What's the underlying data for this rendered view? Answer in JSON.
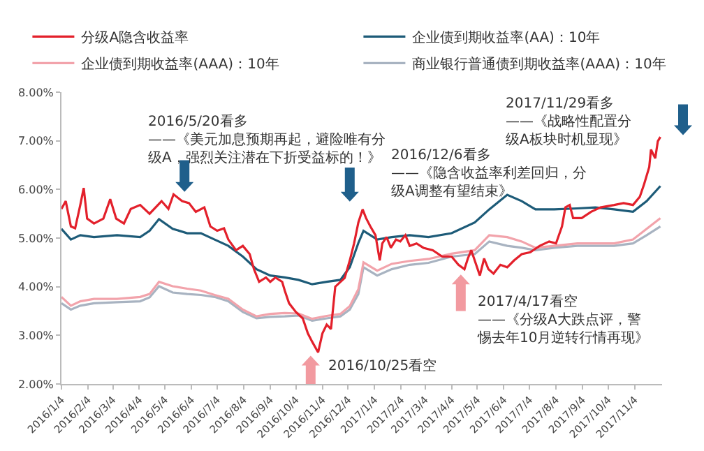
{
  "chart_data": {
    "type": "line",
    "legend": "top",
    "grid": false,
    "marker": "none",
    "line_style": "solid",
    "xlim": [
      "2016-01-04",
      "2017-12-06"
    ],
    "xticks": [
      {
        "value": "2016-01-04",
        "label": "2016/1/4"
      },
      {
        "value": "2016-02-04",
        "label": "2016/2/4"
      },
      {
        "value": "2016-03-04",
        "label": "2016/3/4"
      },
      {
        "value": "2016-04-04",
        "label": "2016/4/4"
      },
      {
        "value": "2016-05-04",
        "label": "2016/5/4"
      },
      {
        "value": "2016-06-04",
        "label": "2016/6/4"
      },
      {
        "value": "2016-07-04",
        "label": "2016/7/4"
      },
      {
        "value": "2016-08-04",
        "label": "2016/8/4"
      },
      {
        "value": "2016-09-04",
        "label": "2016/9/4"
      },
      {
        "value": "2016-10-04",
        "label": "2016/10/4"
      },
      {
        "value": "2016-11-04",
        "label": "2016/11/4"
      },
      {
        "value": "2016-12-04",
        "label": "2016/12/4"
      },
      {
        "value": "2017-01-04",
        "label": "2017/1/4"
      },
      {
        "value": "2017-02-04",
        "label": "2017/2/4"
      },
      {
        "value": "2017-03-04",
        "label": "2017/3/4"
      },
      {
        "value": "2017-04-04",
        "label": "2017/4/4"
      },
      {
        "value": "2017-05-04",
        "label": "2017/5/4"
      },
      {
        "value": "2017-06-04",
        "label": "2017/6/4"
      },
      {
        "value": "2017-07-04",
        "label": "2017/7/4"
      },
      {
        "value": "2017-08-04",
        "label": "2017/8/4"
      },
      {
        "value": "2017-09-04",
        "label": "2017/9/4"
      },
      {
        "value": "2017-10-04",
        "label": "2017/10/4"
      },
      {
        "value": "2017-11-04",
        "label": "2017/11/4"
      }
    ],
    "ylim": [
      2,
      8
    ],
    "yticks": [
      {
        "value": 2,
        "label": "2.00%"
      },
      {
        "value": 3,
        "label": "3.00%"
      },
      {
        "value": 4,
        "label": "4.00%"
      },
      {
        "value": 5,
        "label": "5.00%"
      },
      {
        "value": 6,
        "label": "6.00%"
      },
      {
        "value": 7,
        "label": "7.00%"
      },
      {
        "value": 8,
        "label": "8.00%"
      }
    ],
    "x": [
      "2016-01-04",
      "2016-01-15",
      "2016-01-26",
      "2016-02-11",
      "2016-03-09",
      "2016-04-05",
      "2016-04-16",
      "2016-04-27",
      "2016-05-13",
      "2016-05-30",
      "2016-06-15",
      "2016-07-01",
      "2016-07-17",
      "2016-08-03",
      "2016-08-19",
      "2016-09-04",
      "2016-09-21",
      "2016-10-07",
      "2016-10-23",
      "2016-11-09",
      "2016-11-25",
      "2016-12-06",
      "2016-12-16",
      "2016-12-22",
      "2017-01-07",
      "2017-01-24",
      "2017-02-14",
      "2017-03-08",
      "2017-04-04",
      "2017-05-01",
      "2017-05-18",
      "2017-06-08",
      "2017-06-25",
      "2017-07-11",
      "2017-08-02",
      "2017-08-29",
      "2017-09-19",
      "2017-10-11",
      "2017-11-02",
      "2017-11-18",
      "2017-12-04"
    ],
    "series": [
      {
        "name": "分级A隐含收益率",
        "color": "#e3202b",
        "x": [
          "2016-01-04",
          "2016-01-09",
          "2016-01-15",
          "2016-01-20",
          "2016-01-26",
          "2016-01-30",
          "2016-02-03",
          "2016-02-11",
          "2016-02-22",
          "2016-03-01",
          "2016-03-08",
          "2016-03-17",
          "2016-03-25",
          "2016-04-05",
          "2016-04-16",
          "2016-04-30",
          "2016-05-08",
          "2016-05-14",
          "2016-05-24",
          "2016-06-01",
          "2016-06-09",
          "2016-06-19",
          "2016-06-26",
          "2016-07-04",
          "2016-07-12",
          "2016-07-17",
          "2016-07-26",
          "2016-08-03",
          "2016-08-11",
          "2016-08-16",
          "2016-08-22",
          "2016-08-30",
          "2016-09-04",
          "2016-09-10",
          "2016-09-18",
          "2016-09-21",
          "2016-09-26",
          "2016-10-04",
          "2016-10-12",
          "2016-10-18",
          "2016-10-23",
          "2016-10-30",
          "2016-11-04",
          "2016-11-09",
          "2016-11-14",
          "2016-11-19",
          "2016-11-30",
          "2016-12-06",
          "2016-12-11",
          "2016-12-16",
          "2016-12-21",
          "2016-12-25",
          "2016-12-30",
          "2017-01-05",
          "2017-01-10",
          "2017-01-13",
          "2017-01-18",
          "2017-01-23",
          "2017-01-29",
          "2017-02-03",
          "2017-02-09",
          "2017-02-14",
          "2017-02-22",
          "2017-03-02",
          "2017-03-13",
          "2017-03-24",
          "2017-04-04",
          "2017-04-12",
          "2017-04-19",
          "2017-04-23",
          "2017-04-27",
          "2017-05-01",
          "2017-05-07",
          "2017-05-12",
          "2017-05-17",
          "2017-05-23",
          "2017-05-31",
          "2017-06-08",
          "2017-06-16",
          "2017-06-25",
          "2017-07-05",
          "2017-07-16",
          "2017-07-27",
          "2017-08-04",
          "2017-08-11",
          "2017-08-15",
          "2017-08-20",
          "2017-08-24",
          "2017-09-03",
          "2017-09-14",
          "2017-09-25",
          "2017-10-11",
          "2017-10-22",
          "2017-11-02",
          "2017-11-10",
          "2017-11-15",
          "2017-11-21",
          "2017-11-23",
          "2017-11-28",
          "2017-12-01",
          "2017-12-04"
        ],
        "values": [
          5.6,
          5.76,
          5.24,
          5.2,
          5.68,
          6.03,
          5.4,
          5.3,
          5.4,
          5.8,
          5.4,
          5.3,
          5.6,
          5.68,
          5.5,
          5.76,
          5.6,
          5.9,
          5.76,
          5.72,
          5.54,
          5.63,
          5.24,
          5.15,
          5.2,
          4.97,
          4.75,
          4.84,
          4.67,
          4.36,
          4.1,
          4.19,
          4.1,
          4.19,
          4.1,
          3.92,
          3.66,
          3.48,
          3.35,
          3.04,
          2.87,
          2.65,
          3.04,
          3.22,
          3.13,
          4.0,
          4.18,
          4.54,
          4.89,
          5.32,
          5.59,
          5.41,
          5.24,
          5.06,
          4.54,
          4.89,
          5.02,
          4.8,
          4.97,
          4.93,
          5.06,
          4.84,
          4.89,
          4.8,
          4.75,
          4.62,
          4.62,
          4.45,
          4.36,
          4.58,
          4.75,
          4.54,
          4.23,
          4.58,
          4.36,
          4.27,
          4.45,
          4.4,
          4.54,
          4.67,
          4.71,
          4.84,
          4.93,
          4.89,
          5.24,
          5.63,
          5.68,
          5.41,
          5.41,
          5.54,
          5.63,
          5.68,
          5.72,
          5.68,
          5.85,
          6.11,
          6.46,
          6.82,
          6.64,
          6.99,
          7.08
        ]
      },
      {
        "name": "企业债到期收益率(AA)：10年",
        "color": "#1d5b78",
        "values": [
          5.19,
          4.97,
          5.06,
          5.02,
          5.06,
          5.02,
          5.15,
          5.39,
          5.19,
          5.1,
          5.1,
          4.97,
          4.84,
          4.62,
          4.36,
          4.23,
          4.19,
          4.14,
          4.05,
          4.1,
          4.14,
          4.4,
          4.9,
          5.15,
          4.97,
          5.02,
          5.06,
          5.02,
          5.1,
          5.32,
          5.59,
          5.89,
          5.76,
          5.59,
          5.59,
          5.61,
          5.63,
          5.59,
          5.54,
          5.76,
          6.07
        ]
      },
      {
        "name": "企业债到期收益率(AAA)：10年",
        "color": "#f2a3ab",
        "values": [
          3.79,
          3.61,
          3.7,
          3.75,
          3.75,
          3.79,
          3.85,
          4.1,
          4.01,
          3.96,
          3.92,
          3.83,
          3.75,
          3.53,
          3.39,
          3.44,
          3.46,
          3.45,
          3.34,
          3.4,
          3.44,
          3.6,
          3.95,
          4.5,
          4.33,
          4.47,
          4.53,
          4.57,
          4.68,
          4.75,
          5.06,
          5.02,
          4.93,
          4.8,
          4.84,
          4.89,
          4.89,
          4.89,
          4.97,
          5.19,
          5.41
        ]
      },
      {
        "name": "商业银行普通债到期收益率(AAA)：10年",
        "color": "#a8b3c1",
        "values": [
          3.66,
          3.53,
          3.61,
          3.66,
          3.68,
          3.7,
          3.78,
          4.01,
          3.88,
          3.85,
          3.83,
          3.79,
          3.7,
          3.48,
          3.35,
          3.38,
          3.39,
          3.41,
          3.3,
          3.35,
          3.39,
          3.53,
          3.85,
          4.4,
          4.23,
          4.36,
          4.45,
          4.49,
          4.62,
          4.67,
          4.93,
          4.84,
          4.8,
          4.75,
          4.8,
          4.84,
          4.84,
          4.84,
          4.89,
          5.06,
          5.24
        ]
      }
    ],
    "annotations": [
      "2016/5/20看多——《美元加息预期再起，避险唯有分级A，强烈关注潜在下折受益标的！》",
      "2016/12/6看多——《隐含收益率利差回归，分级A调整有望结束》",
      "2017/11/29看多——《战略性配置分级A板块时机显现》",
      "2017/4/17看空——《分级A大跌点评，警惕去年10月逆转行情再现》",
      "2016/10/25看空"
    ]
  }
}
